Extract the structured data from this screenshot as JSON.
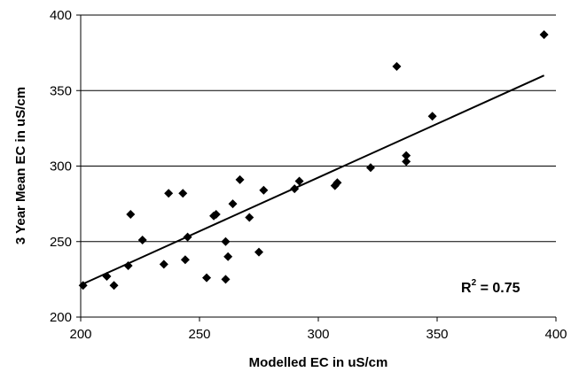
{
  "chart_data": {
    "type": "scatter",
    "xlabel": "Modelled EC in uS/cm",
    "ylabel": "3 Year Mean EC in uS/cm",
    "xlim": [
      200,
      400
    ],
    "ylim": [
      200,
      400
    ],
    "xticks": [
      "200",
      "250",
      "300",
      "350",
      "400"
    ],
    "yticks": [
      "200",
      "250",
      "300",
      "350",
      "400"
    ],
    "grid": "horizontal",
    "marker": "diamond",
    "marker_color": "#000000",
    "annotation": {
      "base": "R",
      "sup": "2",
      "rest": " = 0.75"
    },
    "trendline": {
      "x": [
        201,
        395
      ],
      "y": [
        222,
        360
      ]
    },
    "points": [
      {
        "x": 201,
        "y": 221
      },
      {
        "x": 211,
        "y": 227
      },
      {
        "x": 214,
        "y": 221
      },
      {
        "x": 220,
        "y": 234
      },
      {
        "x": 221,
        "y": 268
      },
      {
        "x": 226,
        "y": 251
      },
      {
        "x": 235,
        "y": 235
      },
      {
        "x": 237,
        "y": 282
      },
      {
        "x": 243,
        "y": 282
      },
      {
        "x": 244,
        "y": 238
      },
      {
        "x": 245,
        "y": 253
      },
      {
        "x": 253,
        "y": 226
      },
      {
        "x": 256,
        "y": 267
      },
      {
        "x": 257,
        "y": 268
      },
      {
        "x": 261,
        "y": 225
      },
      {
        "x": 261,
        "y": 250
      },
      {
        "x": 262,
        "y": 240
      },
      {
        "x": 264,
        "y": 275
      },
      {
        "x": 267,
        "y": 291
      },
      {
        "x": 271,
        "y": 266
      },
      {
        "x": 275,
        "y": 243
      },
      {
        "x": 277,
        "y": 284
      },
      {
        "x": 290,
        "y": 285
      },
      {
        "x": 292,
        "y": 290
      },
      {
        "x": 307,
        "y": 287
      },
      {
        "x": 308,
        "y": 289
      },
      {
        "x": 322,
        "y": 299
      },
      {
        "x": 333,
        "y": 366
      },
      {
        "x": 337,
        "y": 303
      },
      {
        "x": 337,
        "y": 307
      },
      {
        "x": 348,
        "y": 333
      },
      {
        "x": 395,
        "y": 387
      }
    ]
  }
}
